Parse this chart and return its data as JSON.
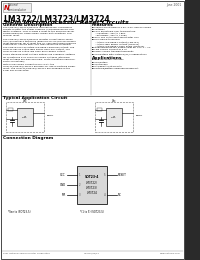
{
  "title_main": "LM3722/LM3723/LM3724",
  "title_sub": "5-Pin Microprocessor Reset Circuits",
  "section_general": "General Description",
  "section_features": "Features",
  "section_applications": "Applications",
  "section_typical": "Typical Application Circuit",
  "section_connection": "Connection Diagram",
  "date_text": "June 2001",
  "company": "National Semiconductor",
  "footer_left": "2001 National Semiconductor Corporation",
  "footer_part": "LM3722/23/24",
  "footer_right": "www.national.com",
  "sidebar_text": "LM3722/LM3723/LM3724 5-Pin Microprocessor Reset Circuits",
  "general_desc_lines": [
    "The LM3722/LM3723/LM3724 microprocessor supervisory",
    "circuits monitor the power supplies in microprocessors and",
    "digital systems. They provide a reset to the microprocessor",
    "during power-up, power-down, brown-out conditions, and",
    "manual reset.",
    "",
    "The LM3722/LM3723/LM3724 monitor a reset signal when",
    "VCC falls below a threshold (3800 mV for 5V microprocessor",
    "reset threshold) for at least 160 us. The reset signal remains",
    "asserted for 140 ms after VCC rises above the threshold.",
    "",
    "The LM3724 has an active-low RESET push-pull output. The",
    "LM3722 has an active-high RESET push-pull output. The",
    "LM3723 has an active-low open drain RESET output.",
    "",
    "Three standard reset voltage options are available, suitable",
    "for monitoring 3.3V and 5.0V supply voltages (standard",
    "reset voltages are also available, contact National Semicon-",
    "ductor for details).",
    "",
    "With a low supply current of only 9 uA, the",
    "LM3722/LM3723/LM3724 are ideal for use in portable equip-",
    "ment. The LM3722/LM3723/LM3724 are available in the",
    "5-pin SOT23 package."
  ],
  "features_lines": [
    "Precise monitoring of 3.3V, 3.0V, and 5V supply",
    "voltages",
    "Fully adjustable over temperature",
    "  Industrial: -40C to +85C",
    "  Extended: -40C to +125C",
    "Only 160 us to reset assert after VCC",
    "falls below threshold",
    "  Active Low RESET Output (LM3724)",
    "  Active High RESET Output (LM3722)",
    "  Active Low RESET Open Drain (LM3723)",
    "Guaranteed RESET output valid for VCC >= 1V",
    "Low Supply Current of 9 uA",
    "Power supply transient immunity",
    "Compatible with National/ST/TI applications"
  ],
  "applications_lines": [
    "Microprocessor Systems",
    "Computers",
    "Controllers",
    "Intelligent Instruments",
    "Portable/Battery Powered Equipment"
  ],
  "bg_color": "#ffffff",
  "text_color": "#000000",
  "sidebar_bg": "#2a2a2a",
  "sidebar_text_color": "#ffffff"
}
